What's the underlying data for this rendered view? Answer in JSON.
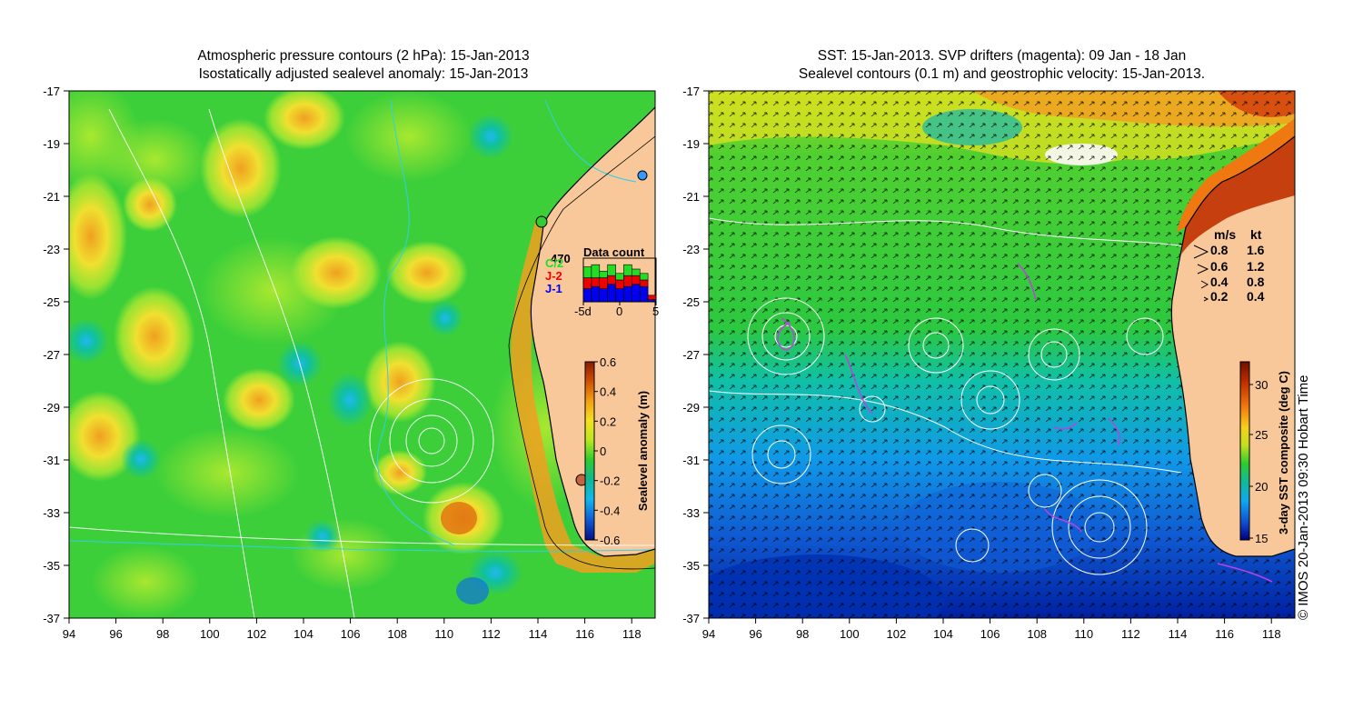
{
  "left_panel": {
    "title_line1": "Atmospheric pressure contours (2 hPa): 15-Jan-2013",
    "title_line2": "Isostatically adjusted sealevel anomaly: 15-Jan-2013",
    "y_ticks": [
      "-17",
      "-19",
      "-21",
      "-23",
      "-25",
      "-27",
      "-29",
      "-31",
      "-33",
      "-35",
      "-37"
    ],
    "x_ticks": [
      "94",
      "96",
      "98",
      "100",
      "102",
      "104",
      "106",
      "108",
      "110",
      "112",
      "114",
      "116",
      "118"
    ],
    "data_count": {
      "label": "Data count",
      "max_label": "470",
      "sat_labels": [
        "C/2",
        "J-2",
        "J-1"
      ],
      "sat_colors": [
        "#22dd22",
        "#ee0000",
        "#0000ee"
      ],
      "x_labels": [
        "-5d",
        "0",
        "5"
      ],
      "bars": [
        {
          "j1": 0.3,
          "j2": 0.25,
          "c2": 0.25
        },
        {
          "j1": 0.35,
          "j2": 0.2,
          "c2": 0.3
        },
        {
          "j1": 0.3,
          "j2": 0.25,
          "c2": 0.15
        },
        {
          "j1": 0.4,
          "j2": 0.2,
          "c2": 0.25
        },
        {
          "j1": 0.3,
          "j2": 0.2,
          "c2": 0.15
        },
        {
          "j1": 0.35,
          "j2": 0.25,
          "c2": 0.25
        },
        {
          "j1": 0.4,
          "j2": 0.2,
          "c2": 0.15
        },
        {
          "j1": 0.35,
          "j2": 0.15,
          "c2": 0.15
        },
        {
          "j1": 0.05,
          "j2": 0.1,
          "c2": 0.0
        }
      ]
    },
    "colorbar": {
      "label": "Sealevel anomaly (m)",
      "ticks": [
        "0.6",
        "0.4",
        "0.2",
        "0",
        "-0.2",
        "-0.4",
        "-0.6"
      ],
      "stops": [
        "#8b1a00",
        "#d05000",
        "#f2a010",
        "#f5e020",
        "#b8e820",
        "#2ecc30",
        "#10b890",
        "#10b8f0",
        "#1060d8",
        "#00108a"
      ]
    }
  },
  "right_panel": {
    "title_line1": "SST: 15-Jan-2013. SVP drifters (magenta): 09 Jan - 18 Jan",
    "title_line2": "Sealevel contours (0.1 m) and geostrophic velocity: 15-Jan-2013.",
    "y_ticks": [
      "-17",
      "-19",
      "-21",
      "-23",
      "-25",
      "-27",
      "-29",
      "-31",
      "-33",
      "-35",
      "-37"
    ],
    "x_ticks": [
      "94",
      "96",
      "98",
      "100",
      "102",
      "104",
      "106",
      "108",
      "110",
      "112",
      "114",
      "116",
      "118"
    ],
    "velocity_legend": {
      "header_ms": "m/s",
      "header_kt": "kt",
      "rows": [
        {
          "ms": "0.8",
          "kt": "1.6"
        },
        {
          "ms": "0.6",
          "kt": "1.2"
        },
        {
          "ms": "0.4",
          "kt": "0.8"
        },
        {
          "ms": "0.2",
          "kt": "0.4"
        }
      ]
    },
    "colorbar": {
      "label": "3-day SST composite (deg C)",
      "ticks": [
        "30",
        "25",
        "20",
        "15"
      ],
      "stops": [
        "#6e1000",
        "#c03000",
        "#f07810",
        "#f5d020",
        "#c0e020",
        "#2ecc30",
        "#10b8a0",
        "#10a8f0",
        "#1050d0",
        "#000080"
      ]
    }
  },
  "copyright": "© IMOS 20-Jan-2013 09:30 Hobart Time"
}
